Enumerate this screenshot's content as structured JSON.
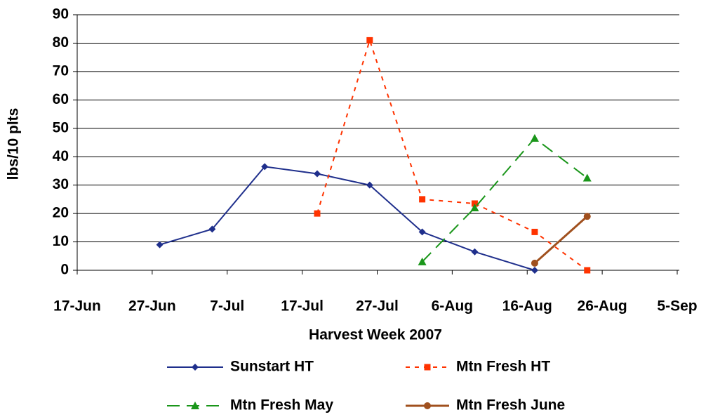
{
  "chart_data": {
    "type": "line",
    "x_label": "Harvest Week 2007",
    "y_label": "lbs/10 plts",
    "x": [
      "28-Jun",
      "5-Jul",
      "12-Jul",
      "19-Jul",
      "26-Jul",
      "2-Aug",
      "9-Aug",
      "17-Aug",
      "24-Aug"
    ],
    "series": [
      {
        "name": "Sunstart HT",
        "color": "#1f2f8c",
        "marker": "diamond",
        "dash": "solid",
        "values": [
          9,
          14.5,
          36.5,
          34,
          30,
          13.5,
          6.5,
          0,
          null
        ]
      },
      {
        "name": "Mtn Fresh HT",
        "color": "#ff3300",
        "marker": "square",
        "dash": "dotted",
        "values": [
          null,
          null,
          null,
          20,
          81,
          25,
          23.5,
          13.5,
          0
        ]
      },
      {
        "name": "Mtn Fresh May",
        "color": "#1a961a",
        "marker": "triangle",
        "dash": "dashed",
        "values": [
          null,
          null,
          null,
          null,
          null,
          3,
          22,
          46.5,
          32.5
        ]
      },
      {
        "name": "Mtn Fresh June",
        "color": "#a0501e",
        "marker": "circle",
        "dash": "solid",
        "values": [
          null,
          null,
          null,
          null,
          null,
          null,
          null,
          2.5,
          19
        ]
      }
    ],
    "xlim": [
      "17-Jun",
      "5-Sep"
    ],
    "xticks": [
      "17-Jun",
      "27-Jun",
      "7-Jul",
      "17-Jul",
      "27-Jul",
      "6-Aug",
      "16-Aug",
      "26-Aug",
      "5-Sep"
    ],
    "ylim": [
      0,
      90
    ],
    "yticks": [
      0,
      10,
      20,
      30,
      40,
      50,
      60,
      70,
      80,
      90
    ],
    "grid": true,
    "legend": "bottom"
  }
}
